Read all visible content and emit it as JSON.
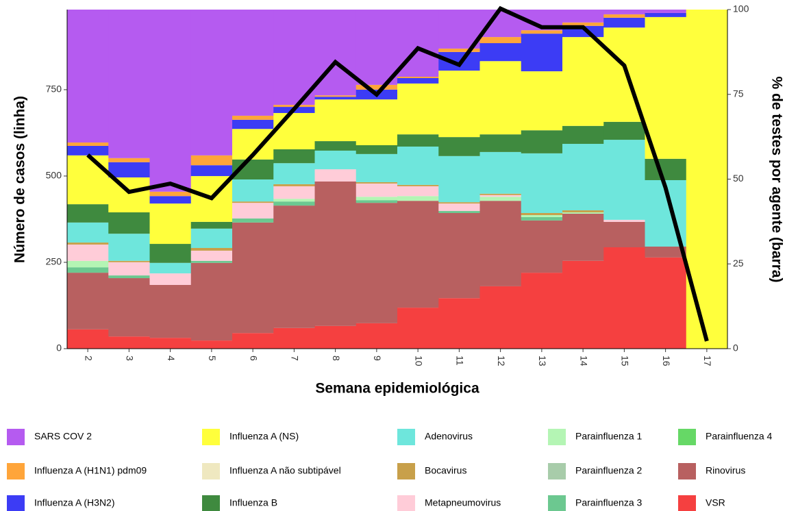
{
  "chart_data": {
    "type": "bar",
    "stacked": true,
    "ylabel": "Número de casos (linha)",
    "y2label": "% de testes por agente (barra)",
    "xlabel": "Semana epidemiológica",
    "categories": [
      "2",
      "3",
      "4",
      "5",
      "6",
      "7",
      "8",
      "9",
      "10",
      "11",
      "12",
      "13",
      "14",
      "15",
      "16",
      "17"
    ],
    "ylim": [
      0,
      982
    ],
    "yticks": [
      0,
      250,
      500,
      750
    ],
    "y2lim": [
      0,
      100
    ],
    "y2ticks": [
      0,
      25,
      50,
      75,
      100
    ],
    "series": [
      {
        "name": "SARS COV 2",
        "color": "#b55bf0",
        "axis": "y2",
        "values": [
          39.2,
          43.8,
          53.7,
          43,
          31.3,
          28.1,
          25.3,
          22.2,
          19.8,
          11.5,
          8.1,
          6.1,
          3.8,
          1.4,
          1,
          0
        ]
      },
      {
        "name": "Influenza A (H1N1) pdm09",
        "color": "#ffa53a",
        "axis": "y2",
        "values": [
          1.0,
          1.2,
          1.3,
          2.9,
          1.2,
          0.6,
          0.4,
          1.4,
          0.4,
          1.0,
          1.8,
          1.0,
          1.0,
          1.0,
          0,
          0
        ]
      },
      {
        "name": "Influenza A (H3N2)",
        "color": "#3c3cf5",
        "axis": "y2",
        "values": [
          2.8,
          4.5,
          2.2,
          3.2,
          2.7,
          1.8,
          0.8,
          2.9,
          1.6,
          5.5,
          5.3,
          11.1,
          3.3,
          2.9,
          1.2,
          0
        ]
      },
      {
        "name": "Influenza A (NS)",
        "color": "#ffff3c",
        "axis": "y2",
        "values": [
          14.4,
          10.3,
          11.9,
          13.5,
          9,
          10.7,
          12.3,
          13.5,
          15,
          19.6,
          21.6,
          17.4,
          26.2,
          27.8,
          41.8,
          100
        ]
      },
      {
        "name": "Influenza A não subtipável",
        "color": "#efe8c0",
        "axis": "y2",
        "values": [
          0,
          0,
          0,
          0,
          0,
          0,
          0,
          0,
          0,
          0,
          0,
          0,
          0,
          0,
          0,
          0
        ]
      },
      {
        "name": "Influenza B",
        "color": "#3f8a3f",
        "axis": "y2",
        "values": [
          5.4,
          6.3,
          5.6,
          2,
          5.9,
          4.1,
          2.8,
          2.6,
          3.6,
          5.6,
          5.2,
          6.8,
          5.3,
          5.3,
          6.3,
          0
        ]
      },
      {
        "name": "Adenovirus",
        "color": "#6ee6dc",
        "axis": "y2",
        "values": [
          5.9,
          8,
          3.1,
          5.7,
          6.5,
          6.2,
          5.5,
          8.3,
          11.3,
          13.6,
          12.3,
          17.6,
          19.6,
          23.6,
          19.6,
          0
        ]
      },
      {
        "name": "Bocavirus",
        "color": "#c8a04a",
        "axis": "y2",
        "values": [
          0.6,
          0.4,
          0,
          0.8,
          0.4,
          0.6,
          0,
          0.4,
          0.4,
          0.4,
          0.4,
          0.6,
          0.6,
          0,
          0,
          0
        ]
      },
      {
        "name": "Metapneumovirus",
        "color": "#ffccd8",
        "axis": "y2",
        "values": [
          4.8,
          3.9,
          3.4,
          3,
          4.6,
          3.7,
          3.6,
          3.9,
          2.9,
          2.2,
          0.5,
          0,
          0,
          0.6,
          0,
          0
        ]
      },
      {
        "name": "Parainfluenza 1",
        "color": "#b4f5b4",
        "axis": "y2",
        "values": [
          1.9,
          0,
          0,
          0,
          0,
          0.8,
          0,
          1,
          1.4,
          0,
          1.2,
          0.6,
          0.4,
          0,
          0,
          0
        ]
      },
      {
        "name": "Parainfluenza 2",
        "color": "#a8ccaa",
        "axis": "y2",
        "values": [
          0,
          0,
          0,
          0,
          0,
          0,
          0,
          0,
          0,
          0,
          0,
          0,
          0,
          0,
          0,
          0
        ]
      },
      {
        "name": "Parainfluenza 3",
        "color": "#6cc890",
        "axis": "y2",
        "values": [
          1.6,
          0.8,
          0,
          0.6,
          1.2,
          1.2,
          0,
          0.8,
          0,
          0.6,
          0,
          1,
          0,
          0,
          0,
          0
        ]
      },
      {
        "name": "Parainfluenza 4",
        "color": "#66d866",
        "axis": "y2",
        "values": [
          0,
          0,
          0,
          0,
          0,
          0,
          0,
          0,
          0,
          0,
          0,
          0,
          0,
          0,
          0,
          0
        ]
      },
      {
        "name": "Rinovirus",
        "color": "#b86060",
        "axis": "y2",
        "values": [
          16.7,
          17.2,
          15.6,
          22.9,
          32.6,
          36.1,
          42.6,
          35.5,
          31.5,
          25.1,
          25.2,
          15.4,
          13.9,
          7.5,
          3.2,
          0
        ]
      },
      {
        "name": "VSR",
        "color": "#f54040",
        "axis": "y2",
        "values": [
          5.7,
          3.6,
          3.2,
          2.4,
          4.6,
          6.1,
          6.7,
          7.5,
          12.1,
          14.9,
          18.4,
          22.4,
          25.9,
          29.9,
          26.9,
          0
        ]
      },
      {
        "type": "line",
        "color": "#000000",
        "values": [
          561,
          454,
          478,
          436,
          561,
          694,
          830,
          736,
          870,
          822,
          985,
          931,
          931,
          820,
          466,
          22
        ]
      }
    ]
  }
}
